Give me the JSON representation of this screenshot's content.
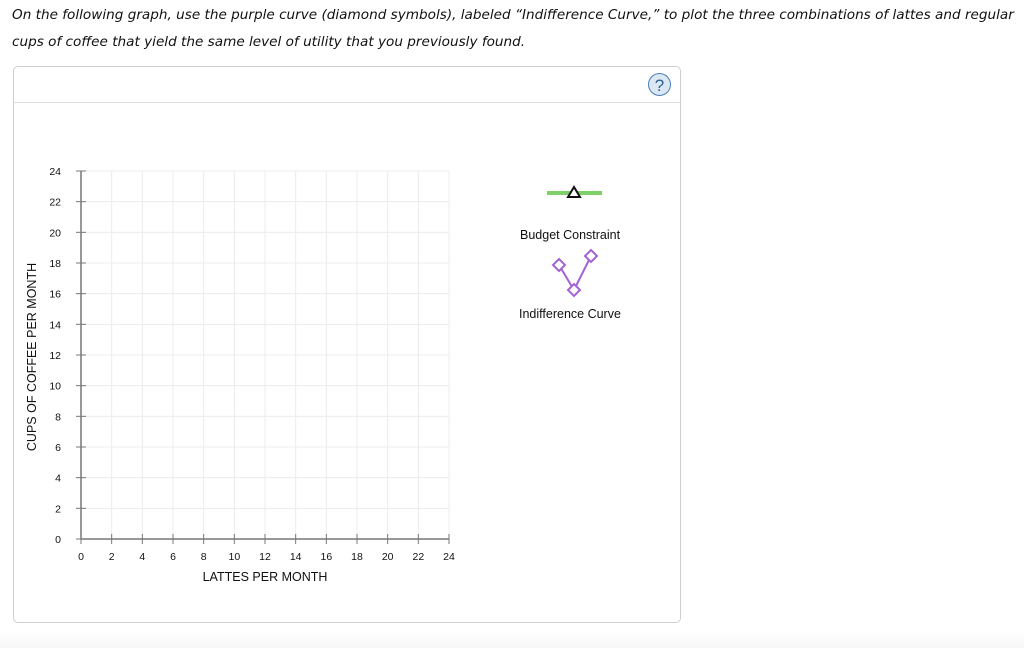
{
  "instructions": "On the following graph, use the purple curve (diamond symbols), labeled “Indifference Curve,” to plot the three combinations of lattes and regular cups of coffee that yield the same level of utility that you previously found.",
  "panel": {
    "help_icon": "?"
  },
  "legend": {
    "items": [
      {
        "label": "Budget Constraint",
        "icon": "green-line-triangle-icon",
        "color": "#7ed06a"
      },
      {
        "label": "Indifference Curve",
        "icon": "purple-diamond-curve-icon",
        "color": "#a463d4"
      }
    ]
  },
  "chart_data": {
    "type": "scatter",
    "title": "",
    "xlabel": "LATTES PER MONTH",
    "ylabel": "CUPS OF COFFEE PER MONTH",
    "xlim": [
      0,
      24
    ],
    "ylim": [
      0,
      24
    ],
    "x_ticks": [
      "0",
      "2",
      "4",
      "6",
      "8",
      "10",
      "12",
      "14",
      "16",
      "18",
      "20",
      "22",
      "24"
    ],
    "y_ticks": [
      "0",
      "2",
      "4",
      "6",
      "8",
      "10",
      "12",
      "14",
      "16",
      "18",
      "20",
      "22",
      "24"
    ],
    "grid": true,
    "legend_position": "right",
    "series": [
      {
        "name": "Budget Constraint",
        "values": [],
        "color": "#7ed06a",
        "marker": "triangle"
      },
      {
        "name": "Indifference Curve",
        "values": [],
        "color": "#a463d4",
        "marker": "diamond"
      }
    ]
  }
}
